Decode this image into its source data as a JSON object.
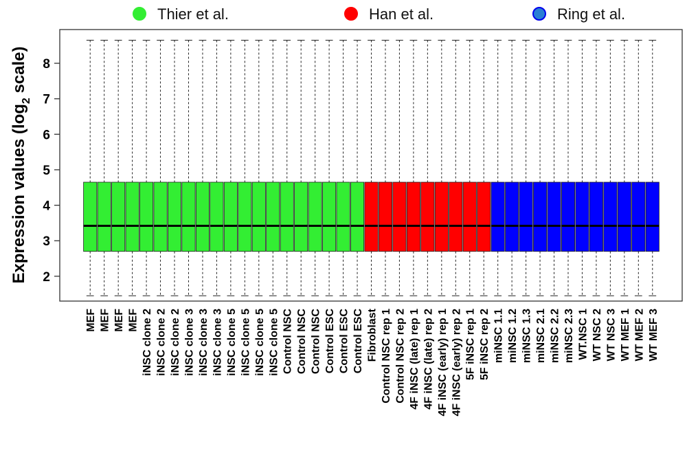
{
  "chart_data": {
    "type": "boxplot",
    "ylabel": "Expression values (log2 scale)",
    "ylabel_parts": {
      "pre": "Expression values (log",
      "sub": "2",
      "post": " scale)"
    },
    "yticks": [
      2,
      3,
      4,
      5,
      6,
      7,
      8
    ],
    "ylim": [
      1.3,
      8.95
    ],
    "grid": false,
    "legend_position": "top",
    "legend": [
      {
        "name": "Thier et al.",
        "color": "#33ee33",
        "border": "#33ee33"
      },
      {
        "name": "Han et al.",
        "color": "#ff0000",
        "border": "#ff0000"
      },
      {
        "name": "Ring et al.",
        "color": "#2a7fd4",
        "border": "#0000ee"
      }
    ],
    "groups": [
      {
        "name": "Thier et al.",
        "color": "#33ee33",
        "categories": [
          "MEF",
          "MEF",
          "MEF",
          "MEF",
          "iNSC clone 2",
          "iNSC clone 2",
          "iNSC clone 2",
          "iNSC clone 3",
          "iNSC clone 3",
          "iNSC clone 3",
          "iNSC clone 5",
          "iNSC clone 5",
          "iNSC clone 5",
          "iNSC clone 5",
          "Control NSC",
          "Control NSC",
          "Control NSC",
          "Control ESC",
          "Control ESC",
          "Control ESC"
        ]
      },
      {
        "name": "Han et al.",
        "color": "#ff0000",
        "categories": [
          "Fibroblast",
          "Control NSC rep 1",
          "Control NSC rep 2",
          "4F iNSC (late) rep 1",
          "4F iNSC (late) rep 2",
          "4F iNSC (early) rep 1",
          "4F iNSC (early) rep 2",
          "5F iNSC rep 1",
          "5F iNSC rep 2"
        ]
      },
      {
        "name": "Ring et al.",
        "color": "#0000ff",
        "categories": [
          "miNSC 1.1",
          "miNSC 1.2",
          "miNSC 1.3",
          "miNSC 2.1",
          "miNSC 2.2",
          "miNSC 2.3",
          "WT.NSC 1",
          "WT NSC 2",
          "WT NSC 3",
          "WT MEF 1",
          "WT MEF 2",
          "WT MEF 3"
        ]
      }
    ],
    "box_stats": {
      "whisker_low": 1.45,
      "q1": 2.7,
      "median": 3.42,
      "q3": 4.65,
      "whisker_high": 8.65
    }
  }
}
